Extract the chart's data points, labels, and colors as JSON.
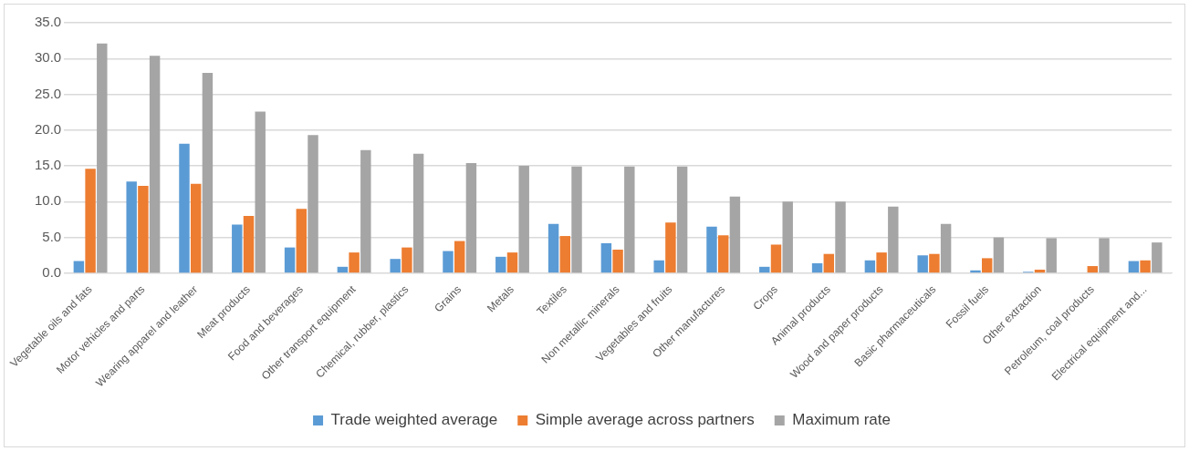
{
  "chart_data": {
    "type": "bar",
    "categories": [
      "Vegetable oils and fats",
      "Motor vehicles and parts",
      "Wearing apparel and leather",
      "Meat products",
      "Food and beverages",
      "Other transport equipment",
      "Chemical, rubber, plastics",
      "Grains",
      "Metals",
      "Textiles",
      "Non metallic minerals",
      "Vegetables and fruits",
      "Other manufactures",
      "Crops",
      "Animal products",
      "Wood and paper products",
      "Basic pharmaceuticals",
      "Fossil fuels",
      "Other extraction",
      "Petroleum, coal products",
      "Electrical equipment and..."
    ],
    "series": [
      {
        "name": "Trade weighted average",
        "color": "#5b9bd5",
        "values": [
          1.7,
          12.8,
          18.1,
          6.8,
          3.6,
          0.9,
          2.0,
          3.1,
          2.3,
          6.9,
          4.2,
          1.8,
          6.5,
          0.9,
          1.4,
          1.8,
          2.5,
          0.4,
          0.2,
          0.0,
          1.7
        ]
      },
      {
        "name": "Simple average across partners",
        "color": "#ed7d31",
        "values": [
          14.6,
          12.2,
          12.5,
          8.0,
          9.0,
          2.9,
          3.6,
          4.5,
          2.9,
          5.2,
          3.3,
          7.1,
          5.3,
          4.0,
          2.7,
          2.9,
          2.7,
          2.1,
          0.5,
          1.0,
          1.8
        ]
      },
      {
        "name": "Maximum rate",
        "color": "#a5a5a5",
        "values": [
          32.1,
          30.4,
          28.0,
          22.6,
          19.3,
          17.2,
          16.7,
          15.4,
          15.0,
          14.9,
          14.9,
          14.9,
          10.7,
          10.0,
          10.0,
          9.3,
          6.9,
          5.0,
          4.9,
          4.9,
          4.3
        ]
      }
    ],
    "ylim": [
      0,
      35
    ],
    "yticks": [
      {
        "value": 0,
        "label": "0.0"
      },
      {
        "value": 5,
        "label": "5.0"
      },
      {
        "value": 10,
        "label": "10.0"
      },
      {
        "value": 15,
        "label": "15.0"
      },
      {
        "value": 20,
        "label": "20.0"
      },
      {
        "value": 25,
        "label": "25.0"
      },
      {
        "value": 30,
        "label": "30.0"
      },
      {
        "value": 35,
        "label": "35.0"
      }
    ],
    "grid": "y",
    "legend": "bottom"
  }
}
